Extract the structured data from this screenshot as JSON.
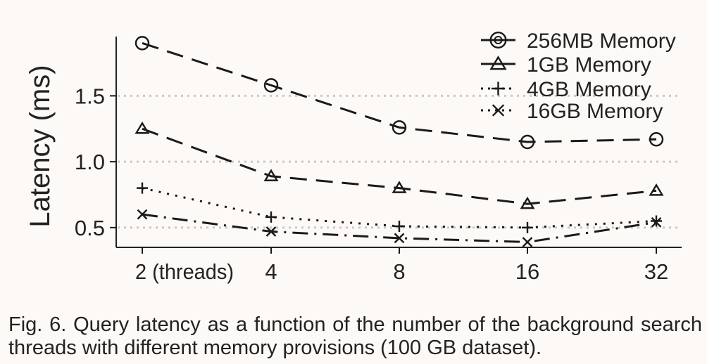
{
  "chart_data": {
    "type": "line",
    "title": "",
    "xlabel": "",
    "ylabel": "Latency (ms)",
    "x_categories": [
      "2",
      "4",
      "8",
      "16",
      "32"
    ],
    "x_tick_labels": [
      "2 (threads)",
      "4",
      "8",
      "16",
      "32"
    ],
    "y_ticks": [
      0.5,
      1.0,
      1.5
    ],
    "y_tick_labels": [
      "0.5",
      "1.0",
      "1.5"
    ],
    "ylim": [
      0.35,
      1.95
    ],
    "grid": "horizontal dotted at y ticks",
    "legend_position": "top-right",
    "series": [
      {
        "name": "256MB Memory",
        "marker": "circle",
        "line_style": "dashed",
        "values": [
          1.9,
          1.58,
          1.26,
          1.15,
          1.17
        ]
      },
      {
        "name": "1GB Memory",
        "marker": "triangle",
        "line_style": "dashed",
        "values": [
          1.25,
          0.89,
          0.8,
          0.68,
          0.78
        ]
      },
      {
        "name": "4GB Memory",
        "marker": "plus",
        "line_style": "dotted",
        "values": [
          0.8,
          0.58,
          0.51,
          0.5,
          0.55
        ]
      },
      {
        "name": "16GB Memory",
        "marker": "x",
        "line_style": "dash-dot",
        "values": [
          0.6,
          0.47,
          0.42,
          0.39,
          0.54
        ]
      }
    ],
    "colors": {
      "line": "#1a1a1a",
      "grid": "#c8c8c8",
      "background": "#fdf9f6"
    }
  },
  "caption": "Fig. 6. Query latency as a function of the number of the background search threads with different memory provisions (100 GB dataset)."
}
